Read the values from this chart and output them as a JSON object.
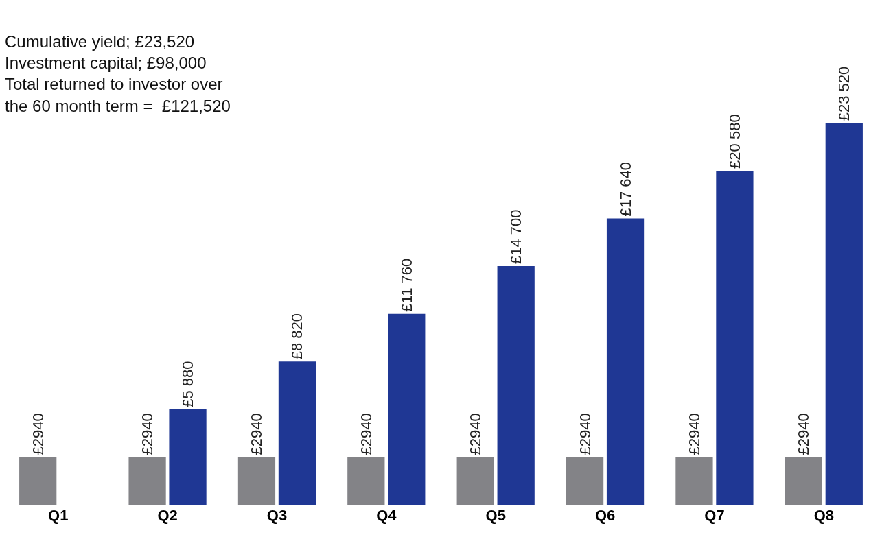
{
  "chart_data": {
    "type": "bar",
    "categories": [
      "Q1",
      "Q2",
      "Q3",
      "Q4",
      "Q5",
      "Q6",
      "Q7",
      "Q8"
    ],
    "series": [
      {
        "color": "#838387",
        "values": [
          2940,
          2940,
          2940,
          2940,
          2940,
          2940,
          2940,
          2940
        ],
        "value_labels": [
          "£2940",
          "£2940",
          "£2940",
          "£2940",
          "£2940",
          "£2940",
          "£2940",
          "£2940"
        ]
      },
      {
        "color": "#1f3794",
        "values": [
          null,
          5880,
          8820,
          11760,
          14700,
          17640,
          20580,
          23520
        ],
        "value_labels": [
          null,
          "£5 880",
          "£8 820",
          "£11 760",
          "£14 700",
          "£17 640",
          "£20 580",
          "£23 520"
        ]
      }
    ],
    "annotations": [
      "Cumulative yield; £23,520\nInvestment capital; £98,000\nTotal returned to investor over\nthe 60 month term =  £121,520"
    ],
    "tick_labels": "x",
    "legend": false
  }
}
